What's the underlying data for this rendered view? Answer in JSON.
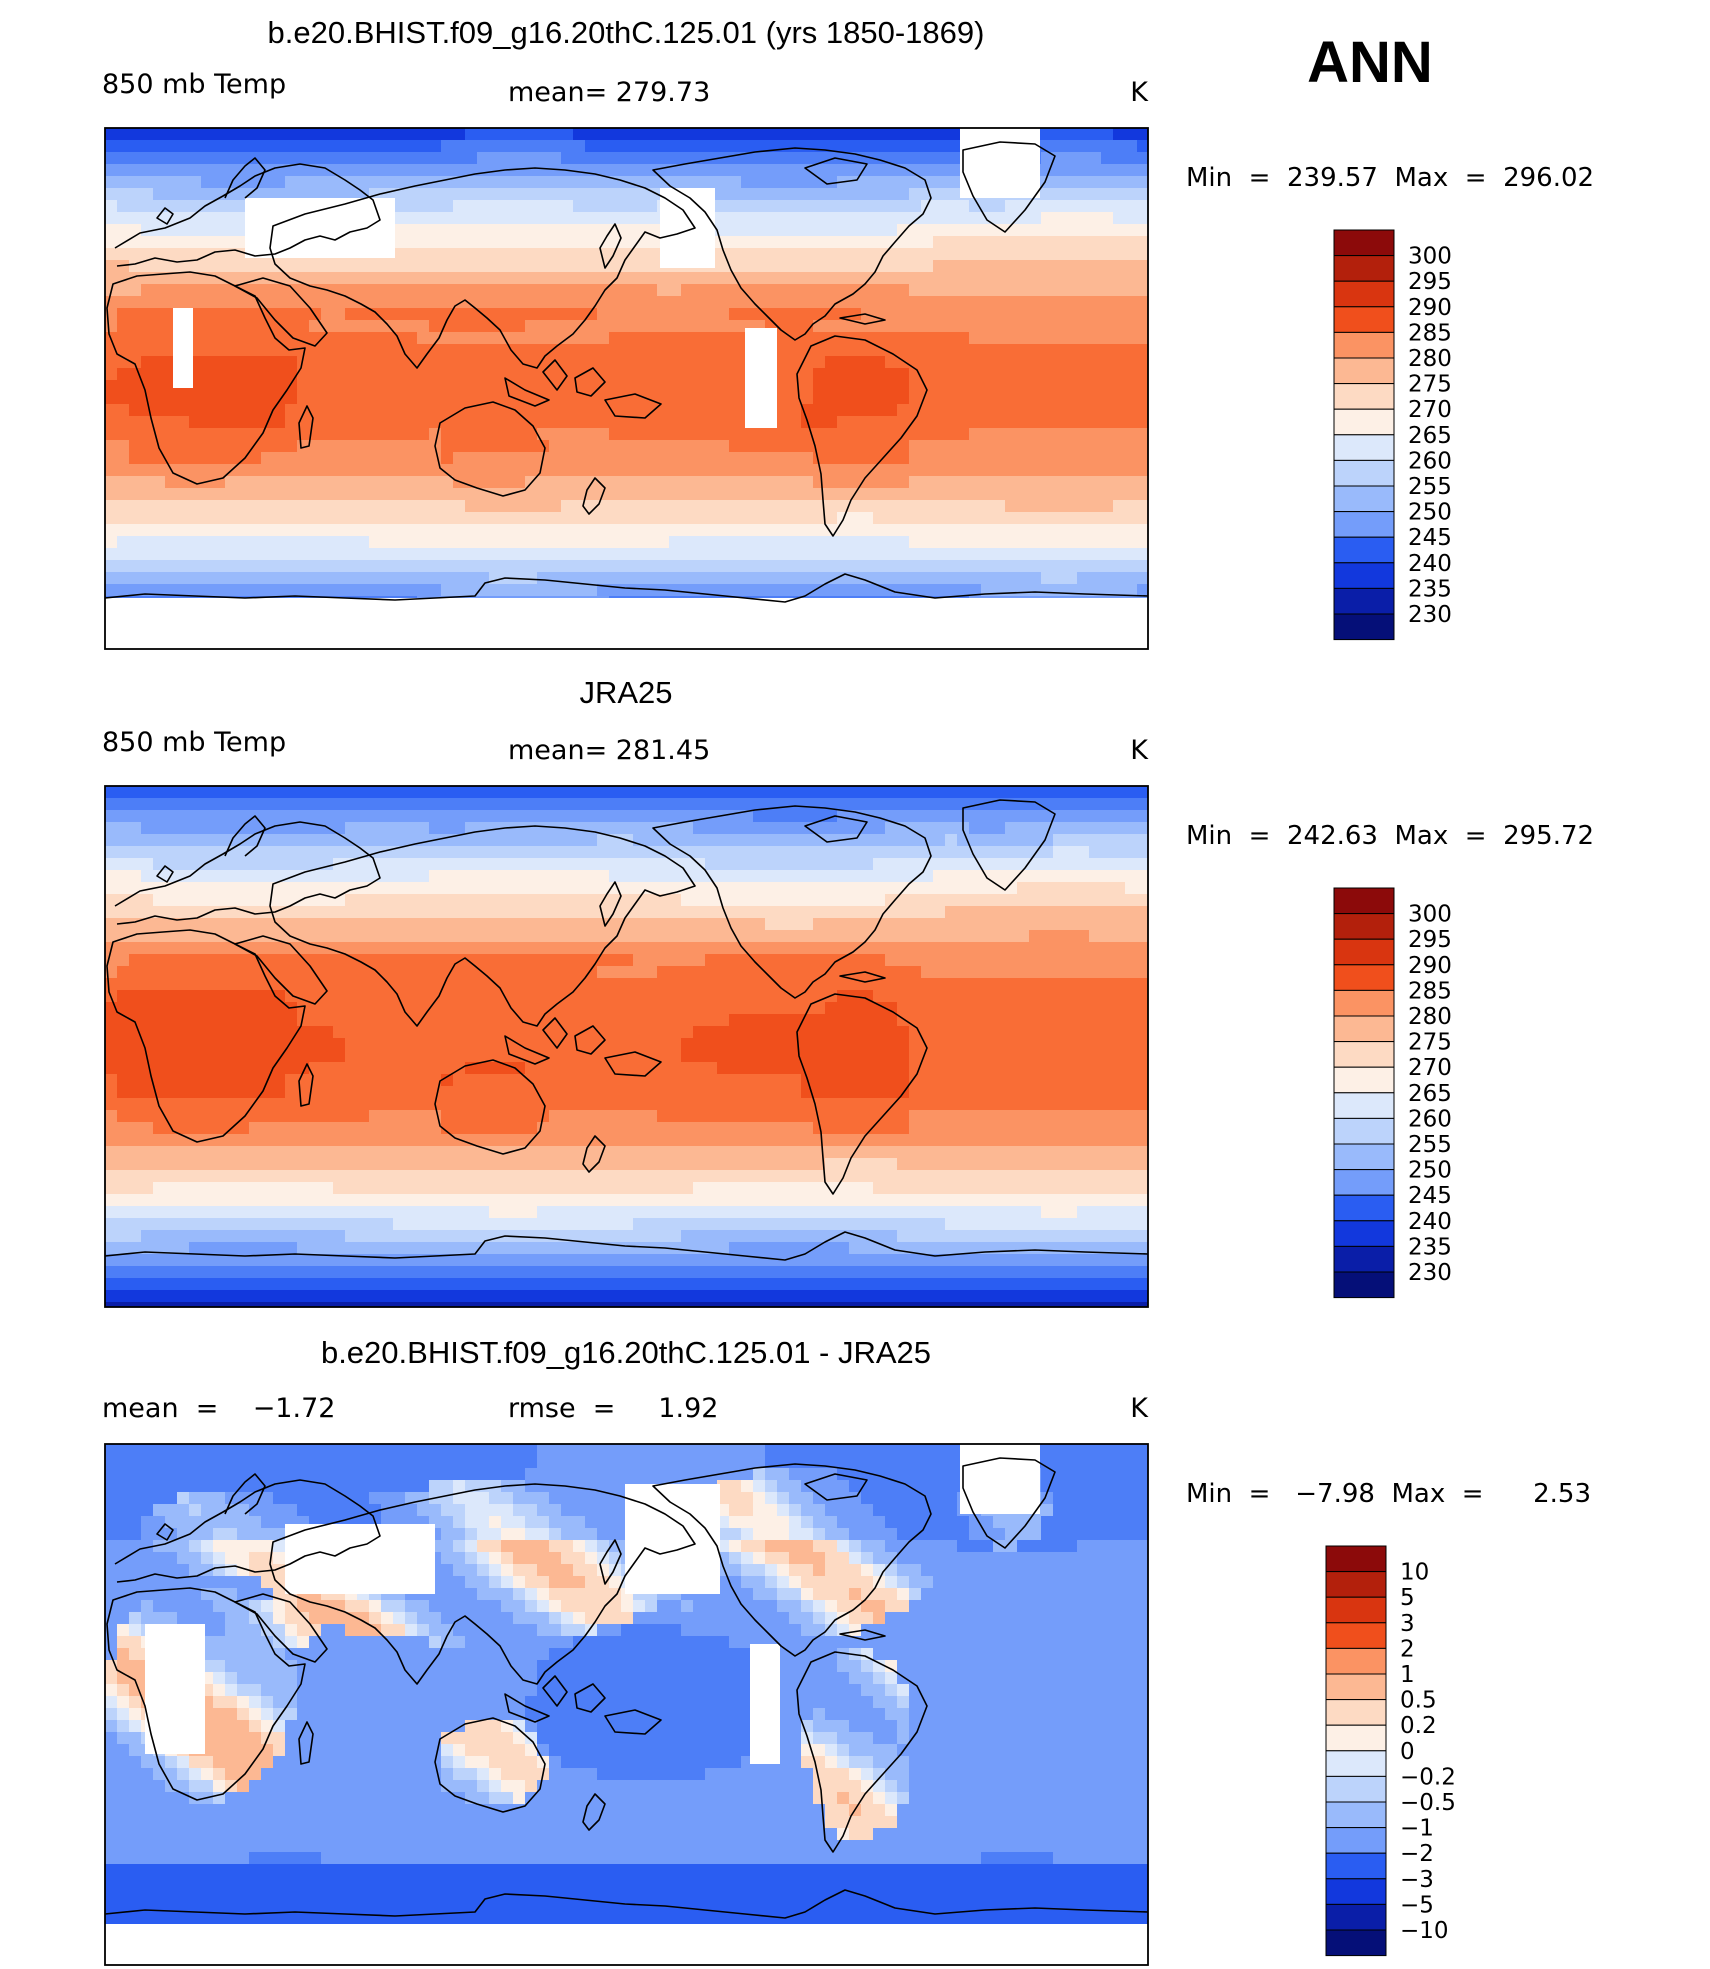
{
  "season_label": "ANN",
  "panels": [
    {
      "title": "b.e20.BHIST.f09_g16.20thC.125.01 (yrs 1850-1869)",
      "left_label": "850 mb Temp",
      "center_label": "mean=  279.73",
      "unit_label": "K",
      "stats": "Min  =  239.57  Max  =  296.02",
      "field": "model",
      "levels": [
        "300",
        "295",
        "290",
        "285",
        "280",
        "275",
        "270",
        "265",
        "260",
        "255",
        "250",
        "245",
        "240",
        "235",
        "230"
      ],
      "colors": [
        "#8c0a0a",
        "#b3200c",
        "#d93510",
        "#f04f1c",
        "#f96d36",
        "#fb9363",
        "#fcb893",
        "#fddac3",
        "#fdf0e6",
        "#dce8fb",
        "#bcd3fb",
        "#99bafb",
        "#749dfa",
        "#4d7ef7",
        "#2a5df2",
        "#1238dd",
        "#0a1ea8",
        "#050f78"
      ]
    },
    {
      "title": "JRA25",
      "left_label": "850 mb Temp",
      "center_label": "mean=  281.45",
      "unit_label": "K",
      "stats": "Min  =  242.63  Max  =  295.72",
      "field": "obs",
      "levels": [
        "300",
        "295",
        "290",
        "285",
        "280",
        "275",
        "270",
        "265",
        "260",
        "255",
        "250",
        "245",
        "240",
        "235",
        "230"
      ],
      "colors": [
        "#8c0a0a",
        "#b3200c",
        "#d93510",
        "#f04f1c",
        "#f96d36",
        "#fb9363",
        "#fcb893",
        "#fddac3",
        "#fdf0e6",
        "#dce8fb",
        "#bcd3fb",
        "#99bafb",
        "#749dfa",
        "#4d7ef7",
        "#2a5df2",
        "#1238dd",
        "#0a1ea8",
        "#050f78"
      ]
    },
    {
      "title": "b.e20.BHIST.f09_g16.20thC.125.01 - JRA25",
      "left_label": "mean  =    −1.72",
      "center_label": "rmse  =     1.92",
      "unit_label": "K",
      "stats": "Min  =   −7.98  Max  =      2.53",
      "field": "diff",
      "levels": [
        "10",
        "5",
        "3",
        "2",
        "1",
        "0.5",
        "0.2",
        "0",
        "−0.2",
        "−0.5",
        "−1",
        "−2",
        "−3",
        "−5",
        "−10"
      ],
      "colors": [
        "#8c0a0a",
        "#b3200c",
        "#d93510",
        "#f04f1c",
        "#f96d36",
        "#fb9363",
        "#fcb893",
        "#fddac3",
        "#fdf0e6",
        "#dce8fb",
        "#bcd3fb",
        "#99bafb",
        "#749dfa",
        "#4d7ef7",
        "#2a5df2",
        "#1238dd",
        "#0a1ea8",
        "#050f78"
      ]
    }
  ]
}
